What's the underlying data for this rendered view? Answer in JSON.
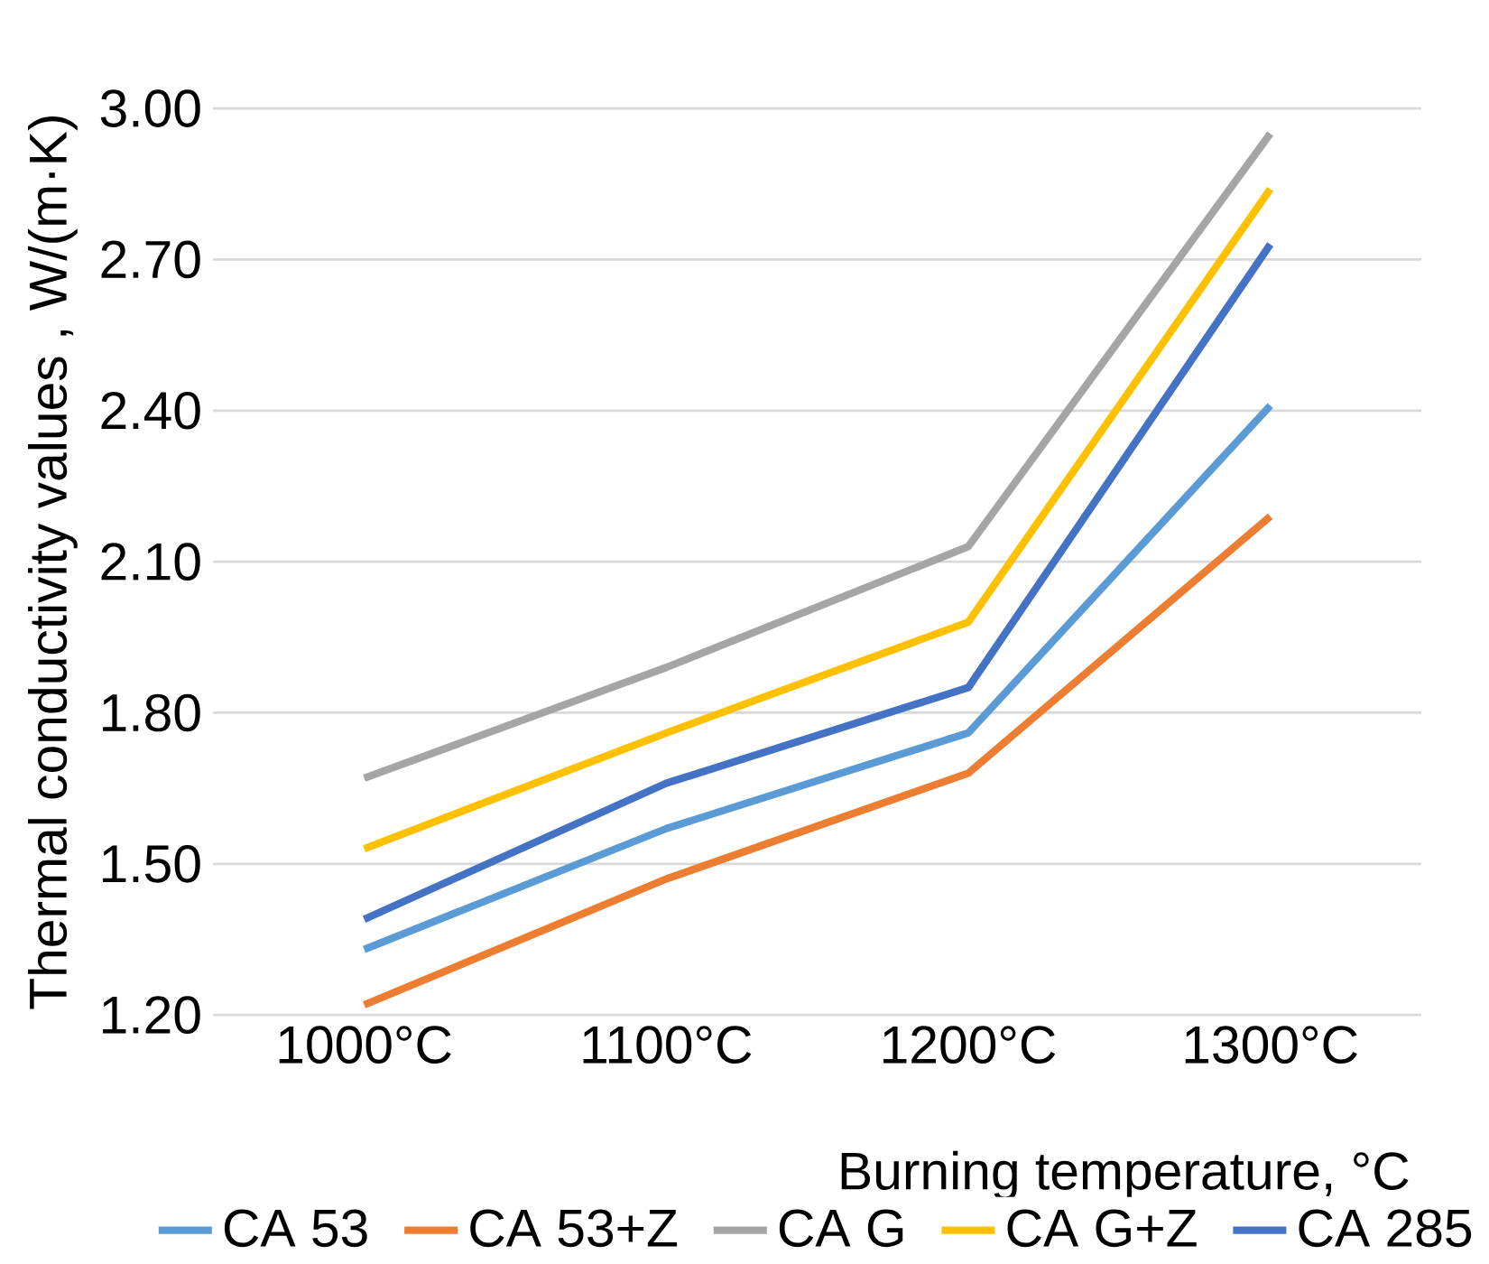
{
  "chart_data": {
    "type": "line",
    "xlabel": "Burning temperature, °C",
    "ylabel": "Thermal conductivity values , W/(m·K)",
    "categories": [
      "1000°C",
      "1100°C",
      "1200°C",
      "1300°C"
    ],
    "ylim": [
      1.2,
      3.0
    ],
    "yticks": [
      {
        "value": 1.2,
        "label": "1.20"
      },
      {
        "value": 1.5,
        "label": "1.50"
      },
      {
        "value": 1.8,
        "label": "1.80"
      },
      {
        "value": 2.1,
        "label": "2.10"
      },
      {
        "value": 2.4,
        "label": "2.40"
      },
      {
        "value": 2.7,
        "label": "2.70"
      },
      {
        "value": 3.0,
        "label": "3.00"
      }
    ],
    "grid": "y",
    "legend": "bottom",
    "series": [
      {
        "name": "CA 53",
        "color": "#5b9bd5",
        "values": [
          1.33,
          1.57,
          1.76,
          2.41
        ]
      },
      {
        "name": "CA 53+Z",
        "color": "#ed7d31",
        "values": [
          1.22,
          1.47,
          1.68,
          2.19
        ]
      },
      {
        "name": "CA G",
        "color": "#a5a5a5",
        "values": [
          1.67,
          1.89,
          2.13,
          2.95
        ]
      },
      {
        "name": "CA G+Z",
        "color": "#ffc000",
        "values": [
          1.53,
          1.76,
          1.98,
          2.84
        ]
      },
      {
        "name": "CA  285",
        "color": "#4472c4",
        "values": [
          1.39,
          1.66,
          1.85,
          2.73
        ]
      }
    ]
  }
}
